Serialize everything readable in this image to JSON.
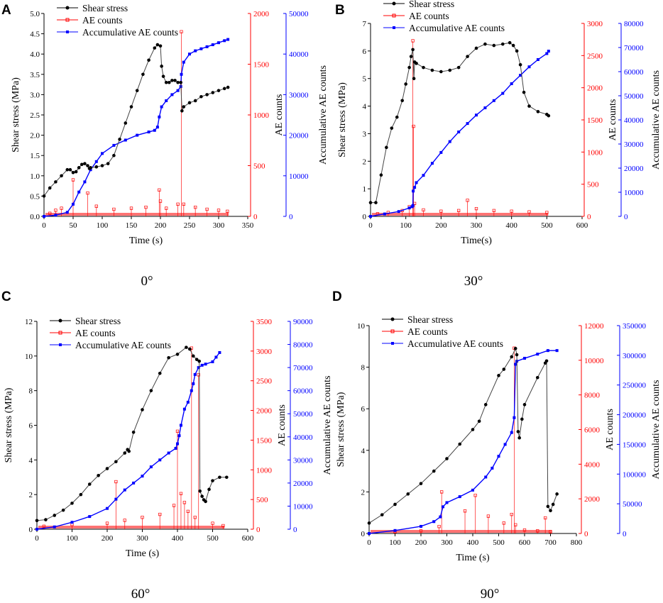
{
  "figure": {
    "legend_labels": [
      "Shear stress",
      "AE counts",
      "Accumulative AE counts"
    ],
    "colors": {
      "stress": "#000000",
      "ae": "#ff0000",
      "cum": "#0000ff"
    }
  },
  "chart_data": [
    {
      "type": "line",
      "panel": "A",
      "angle": "0°",
      "xlabel": "Time (s)",
      "ylabel": "Shear stress (MPa)",
      "y2label": "AE counts",
      "y3label": "Accumulative AE counts",
      "xlim": [
        0,
        350
      ],
      "xticks": [
        0,
        50,
        100,
        150,
        200,
        250,
        300,
        350
      ],
      "ylim": [
        0,
        5
      ],
      "yticks": [
        0.0,
        0.5,
        1.0,
        1.5,
        2.0,
        2.5,
        3.0,
        3.5,
        4.0,
        4.5,
        5.0
      ],
      "ydec": 1,
      "y2lim": [
        0,
        2000
      ],
      "y2ticks": [
        0,
        500,
        1000,
        1500,
        2000
      ],
      "y3lim": [
        0,
        50000
      ],
      "y3ticks": [
        0,
        10000,
        20000,
        30000,
        40000,
        50000
      ],
      "series": [
        {
          "name": "Shear stress",
          "axis": "left",
          "x": [
            0,
            10,
            20,
            30,
            40,
            45,
            50,
            55,
            60,
            65,
            70,
            75,
            78,
            80,
            90,
            100,
            110,
            120,
            130,
            140,
            150,
            160,
            170,
            180,
            190,
            195,
            200,
            202,
            205,
            210,
            215,
            220,
            225,
            230,
            235,
            237,
            240,
            250,
            260,
            270,
            280,
            290,
            300,
            310,
            316
          ],
          "y": [
            0.5,
            0.7,
            0.85,
            1.0,
            1.15,
            1.15,
            1.08,
            1.1,
            1.2,
            1.28,
            1.3,
            1.25,
            1.18,
            1.2,
            1.22,
            1.25,
            1.3,
            1.5,
            1.9,
            2.3,
            2.7,
            3.1,
            3.5,
            3.85,
            4.15,
            4.23,
            4.2,
            3.7,
            3.45,
            3.3,
            3.3,
            3.35,
            3.35,
            3.3,
            3.3,
            2.6,
            2.7,
            2.8,
            2.85,
            2.95,
            3.0,
            3.05,
            3.1,
            3.15,
            3.18
          ]
        },
        {
          "name": "AE counts",
          "axis": "right1",
          "x": [
            10,
            20,
            30,
            50,
            75,
            90,
            120,
            150,
            175,
            198,
            200,
            210,
            230,
            236,
            240,
            260,
            280,
            300,
            315
          ],
          "y": [
            30,
            60,
            80,
            360,
            230,
            100,
            70,
            80,
            90,
            260,
            150,
            80,
            120,
            1820,
            120,
            90,
            70,
            60,
            50
          ]
        },
        {
          "name": "Accumulative AE counts",
          "axis": "right2",
          "x": [
            0,
            20,
            40,
            50,
            60,
            70,
            80,
            90,
            100,
            120,
            140,
            160,
            180,
            190,
            195,
            198,
            202,
            210,
            220,
            230,
            235,
            236,
            240,
            250,
            260,
            270,
            280,
            290,
            300,
            310,
            316
          ],
          "y": [
            0,
            300,
            1000,
            3000,
            6000,
            8500,
            11500,
            13500,
            15500,
            17500,
            18800,
            20000,
            20800,
            21200,
            22000,
            24500,
            27000,
            28500,
            30000,
            31000,
            32000,
            35000,
            38000,
            40000,
            40800,
            41300,
            41800,
            42300,
            42800,
            43300,
            43600
          ]
        }
      ]
    },
    {
      "type": "line",
      "panel": "B",
      "angle": "30°",
      "xlabel": "Time(s)",
      "ylabel": "Shear stress (MPa)",
      "y2label": "AE counts",
      "y3label": "Accumulative AE counts",
      "xlim": [
        0,
        600
      ],
      "xticks": [
        0,
        100,
        200,
        300,
        400,
        500,
        600
      ],
      "ylim": [
        0,
        7
      ],
      "yticks": [
        0,
        1,
        2,
        3,
        4,
        5,
        6,
        7
      ],
      "ydec": 0,
      "y2lim": [
        0,
        3000
      ],
      "y2ticks": [
        0,
        500,
        1000,
        1500,
        2000,
        2500,
        3000
      ],
      "y3lim": [
        0,
        80000
      ],
      "y3ticks": [
        0,
        10000,
        20000,
        30000,
        40000,
        50000,
        60000,
        70000,
        80000
      ],
      "series": [
        {
          "name": "Shear stress",
          "axis": "left",
          "x": [
            0,
            15,
            30,
            45,
            60,
            75,
            90,
            100,
            110,
            115,
            120,
            123,
            125,
            130,
            150,
            175,
            200,
            225,
            250,
            275,
            300,
            325,
            350,
            375,
            395,
            405,
            415,
            425,
            435,
            450,
            475,
            500,
            505
          ],
          "y": [
            0.5,
            0.5,
            1.5,
            2.5,
            3.2,
            3.6,
            4.2,
            4.8,
            5.4,
            5.8,
            6.05,
            5.0,
            5.6,
            5.55,
            5.4,
            5.3,
            5.25,
            5.3,
            5.4,
            5.8,
            6.1,
            6.25,
            6.2,
            6.25,
            6.3,
            6.2,
            6.0,
            5.5,
            4.5,
            4.0,
            3.8,
            3.7,
            3.65
          ]
        },
        {
          "name": "AE counts",
          "axis": "right1",
          "x": [
            20,
            50,
            90,
            110,
            120,
            122,
            125,
            150,
            200,
            250,
            275,
            300,
            350,
            400,
            450,
            500
          ],
          "y": [
            40,
            60,
            90,
            150,
            2730,
            1400,
            200,
            100,
            80,
            90,
            250,
            120,
            90,
            80,
            70,
            60
          ]
        },
        {
          "name": "Accumulative AE counts",
          "axis": "right2",
          "x": [
            0,
            40,
            80,
            110,
            118,
            120,
            121,
            125,
            130,
            150,
            175,
            200,
            225,
            250,
            275,
            300,
            325,
            350,
            375,
            400,
            425,
            450,
            475,
            500,
            505
          ],
          "y": [
            0,
            1000,
            2000,
            3500,
            4000,
            4500,
            10500,
            12000,
            14000,
            17000,
            22000,
            26500,
            31000,
            35000,
            38500,
            42000,
            45000,
            48000,
            51000,
            55000,
            58500,
            62000,
            65000,
            67500,
            68500
          ]
        }
      ]
    },
    {
      "type": "line",
      "panel": "C",
      "angle": "60°",
      "xlabel": "Time (s)",
      "ylabel": "Shear stress (MPa)",
      "y2label": "AE counts",
      "y3label": "Accumulative AE counts",
      "xlim": [
        0,
        600
      ],
      "xticks": [
        0,
        100,
        200,
        300,
        400,
        500,
        600
      ],
      "ylim": [
        0,
        12
      ],
      "yticks": [
        0,
        2,
        4,
        6,
        8,
        10,
        12
      ],
      "ydec": 0,
      "y2lim": [
        0,
        3500
      ],
      "y2ticks": [
        0,
        500,
        1000,
        1500,
        2000,
        2500,
        3000,
        3500
      ],
      "y3lim": [
        0,
        90000
      ],
      "y3ticks": [
        0,
        10000,
        20000,
        30000,
        40000,
        50000,
        60000,
        70000,
        80000,
        90000
      ],
      "series": [
        {
          "name": "Shear stress",
          "axis": "left",
          "x": [
            0,
            25,
            50,
            75,
            100,
            125,
            150,
            175,
            200,
            225,
            250,
            258,
            262,
            275,
            300,
            325,
            350,
            375,
            400,
            425,
            435,
            445,
            455,
            462,
            464,
            470,
            475,
            480,
            490,
            500,
            520,
            540
          ],
          "y": [
            0.5,
            0.55,
            0.8,
            1.1,
            1.5,
            2.0,
            2.6,
            3.1,
            3.5,
            3.9,
            4.4,
            4.6,
            4.5,
            5.6,
            6.9,
            8.0,
            9.0,
            9.9,
            10.1,
            10.5,
            10.4,
            10.0,
            9.8,
            9.7,
            2.2,
            1.9,
            1.7,
            1.6,
            2.3,
            2.8,
            3.0,
            3.0
          ]
        },
        {
          "name": "AE counts",
          "axis": "right1",
          "x": [
            20,
            100,
            200,
            225,
            250,
            300,
            350,
            390,
            400,
            410,
            420,
            430,
            440,
            450,
            460,
            500,
            530
          ],
          "y": [
            50,
            80,
            100,
            800,
            150,
            200,
            250,
            400,
            1650,
            600,
            450,
            300,
            3050,
            200,
            2600,
            100,
            60
          ]
        },
        {
          "name": "Accumulative AE counts",
          "axis": "right2",
          "x": [
            0,
            50,
            100,
            150,
            200,
            225,
            250,
            275,
            300,
            325,
            350,
            375,
            395,
            400,
            405,
            410,
            420,
            430,
            440,
            445,
            450,
            460,
            470,
            480,
            500,
            510,
            520
          ],
          "y": [
            0,
            1000,
            3000,
            5500,
            9000,
            13000,
            17000,
            20000,
            23000,
            27000,
            30000,
            33000,
            35000,
            37000,
            40500,
            45000,
            52000,
            55000,
            60000,
            63000,
            67000,
            70000,
            71000,
            71500,
            72500,
            74500,
            76500
          ]
        }
      ]
    },
    {
      "type": "line",
      "panel": "D",
      "angle": "90°",
      "xlabel": "Time (s)",
      "ylabel": "Shear stress (MPa)",
      "y2label": "AE counts",
      "y3label": "Accumulative AE counts",
      "xlim": [
        0,
        800
      ],
      "xticks": [
        0,
        100,
        200,
        300,
        400,
        500,
        600,
        700,
        800
      ],
      "ylim": [
        0,
        10
      ],
      "yticks": [
        0,
        2,
        4,
        6,
        8,
        10
      ],
      "ydec": 0,
      "y2lim": [
        0,
        12000
      ],
      "y2ticks": [
        0,
        2000,
        4000,
        6000,
        8000,
        10000,
        12000
      ],
      "y3lim": [
        0,
        350000
      ],
      "y3ticks": [
        0,
        50000,
        100000,
        150000,
        200000,
        250000,
        300000,
        350000
      ],
      "series": [
        {
          "name": "Shear stress",
          "axis": "left",
          "x": [
            0,
            50,
            100,
            150,
            200,
            250,
            300,
            350,
            400,
            425,
            450,
            500,
            520,
            550,
            565,
            570,
            575,
            580,
            590,
            600,
            650,
            680,
            685,
            690,
            700,
            710,
            725
          ],
          "y": [
            0.5,
            0.9,
            1.4,
            1.9,
            2.4,
            3.0,
            3.6,
            4.3,
            5.0,
            5.4,
            6.2,
            7.6,
            7.9,
            8.5,
            8.9,
            8.6,
            4.9,
            4.6,
            5.5,
            6.2,
            7.5,
            8.2,
            8.3,
            1.3,
            1.1,
            1.4,
            1.9
          ]
        },
        {
          "name": "AE counts",
          "axis": "right1",
          "x": [
            100,
            200,
            270,
            280,
            370,
            410,
            460,
            520,
            550,
            560,
            565,
            600,
            650,
            680,
            700
          ],
          "y": [
            100,
            150,
            400,
            2400,
            1300,
            2200,
            1000,
            600,
            1100,
            10700,
            500,
            200,
            150,
            900,
            100
          ]
        },
        {
          "name": "Accumulative AE counts",
          "axis": "right2",
          "x": [
            0,
            100,
            200,
            250,
            275,
            285,
            300,
            350,
            400,
            450,
            475,
            500,
            525,
            550,
            560,
            565,
            570,
            600,
            650,
            690,
            725
          ],
          "y": [
            0,
            5000,
            12000,
            20000,
            28000,
            45000,
            52000,
            62000,
            73000,
            95000,
            110000,
            130000,
            150000,
            170000,
            195000,
            285000,
            290000,
            295000,
            302000,
            308000,
            308000
          ]
        }
      ]
    }
  ]
}
